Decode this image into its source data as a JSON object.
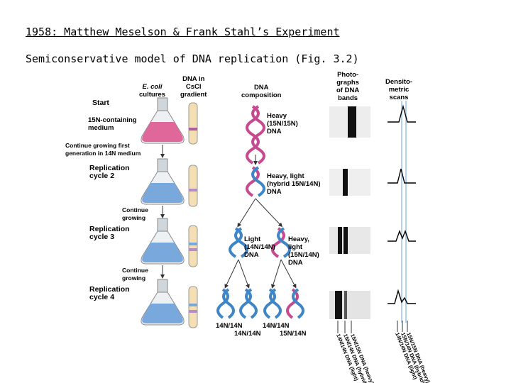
{
  "slide": {
    "title": "1958: Matthew Meselson & Frank Stahl’s Experiment",
    "subtitle": "Semiconservative model of DNA replication (Fig. 3.2)"
  },
  "figure": {
    "col_headers": {
      "ecoli_1": "E. coli",
      "ecoli_2": "cultures",
      "cscl_1": "DNA in",
      "cscl_2": "CsCl",
      "cscl_3": "gradient",
      "dna_1": "DNA",
      "dna_2": "composition",
      "photo_1": "Photo-",
      "photo_2": "graphs",
      "photo_3": "of DNA",
      "photo_4": "bands",
      "dens_1": "Densito-",
      "dens_2": "metric",
      "dens_3": "scans"
    },
    "steps": {
      "start": "Start",
      "medium_1": "15N-containing",
      "medium_2": "medium",
      "cont_first_1": "Continue growing first",
      "cont_first_2": "generation in 14N medium",
      "rep2_1": "Replication",
      "rep2_2": "cycle 2",
      "cont2_1": "Continue",
      "cont2_2": "growing",
      "rep3_1": "Replication",
      "rep3_2": "cycle 3",
      "cont3_1": "Continue",
      "cont3_2": "growing",
      "rep4_1": "Replication",
      "rep4_2": "cycle 4"
    },
    "dna_labels": {
      "heavy_1": "Heavy",
      "heavy_2": "(15N/15N)",
      "heavy_3": "DNA",
      "hybrid_1": "Heavy, light",
      "hybrid_2": "(hybrid 15N/14N)",
      "hybrid_3": "DNA",
      "light_1": "Light",
      "light_2": "(14N/14N)",
      "light_3": "DNA",
      "hl_1": "Heavy,",
      "hl_2": "light",
      "hl_3": "(15N/14N)",
      "hl_4": "DNA",
      "g4_1": "14N/14N",
      "g4_2": "14N/14N",
      "g4_3": "14N/14N",
      "g4_4": "15N/14N"
    },
    "band_axis": {
      "a": "14N/14N DNA (light)",
      "b": "15N/14N DNA (hybrid)",
      "c": "15N/15N DNA (heavy)"
    },
    "scan_axis": {
      "a": "14N/14N DNA (light)",
      "b": "15N/14N DNA (hybrid)",
      "c": "15N/15N DNA (heavy)"
    },
    "colors": {
      "heavy_medium": "#e0679a",
      "light_medium": "#79a8dc",
      "helix_pink": "#c64a8f",
      "helix_blue": "#3f86c6",
      "scan_line": "#9cc4e6",
      "arrow": "#333333"
    }
  }
}
